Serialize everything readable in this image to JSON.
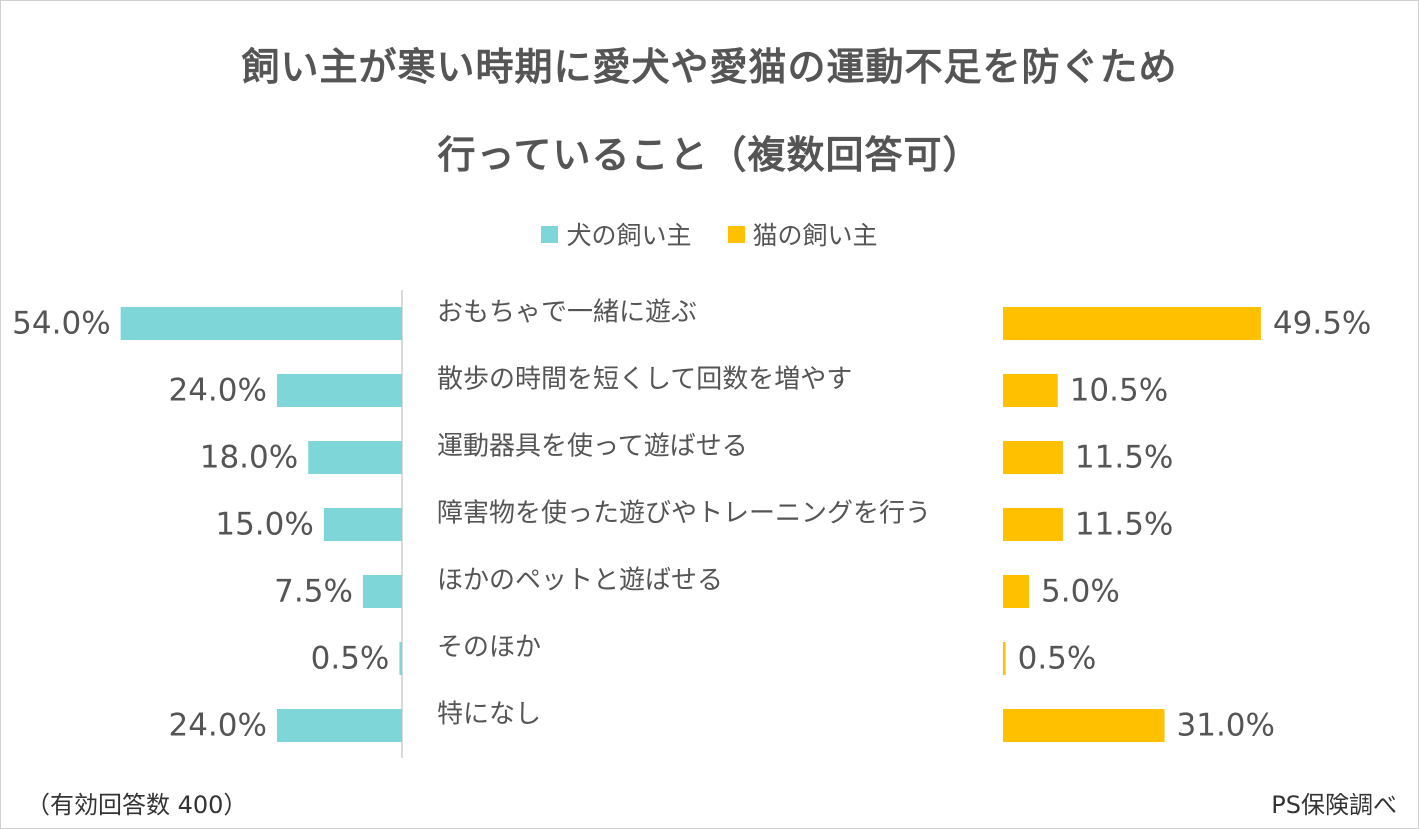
{
  "title_line1": "飼い主が寒い時期に愛犬や愛猫の運動不足を防ぐため",
  "title_line2": "行っていること（複数回答可）",
  "legend": {
    "dog": "犬の飼い主",
    "cat": "猫の飼い主"
  },
  "colors": {
    "dog": "#7fd6d9",
    "cat": "#ffc000",
    "text": "#555555",
    "divider": "#d9d9d9"
  },
  "note": "（有効回答数 400）",
  "source": "PS保険調べ",
  "chart_data": {
    "type": "bar",
    "orientation": "horizontal-butterfly",
    "categories": [
      "おもちゃで一緒に遊ぶ",
      "散歩の時間を短くして回数を増やす",
      "運動器具を使って遊ばせる",
      "障害物を使った遊びやトレーニングを行う",
      "ほかのペットと遊ばせる",
      "そのほか",
      "特になし"
    ],
    "series": [
      {
        "name": "犬の飼い主",
        "values": [
          54.0,
          24.0,
          18.0,
          15.0,
          7.5,
          0.5,
          24.0
        ],
        "labels": [
          "54.0%",
          "24.0%",
          "18.0%",
          "15.0%",
          "7.5%",
          "0.5%",
          "24.0%"
        ]
      },
      {
        "name": "猫の飼い主",
        "values": [
          49.5,
          10.5,
          11.5,
          11.5,
          5.0,
          0.5,
          31.0
        ],
        "labels": [
          "49.5%",
          "10.5%",
          "11.5%",
          "11.5%",
          "5.0%",
          "0.5%",
          "31.0%"
        ]
      }
    ],
    "unit": "%",
    "xlim": [
      0,
      60
    ]
  }
}
